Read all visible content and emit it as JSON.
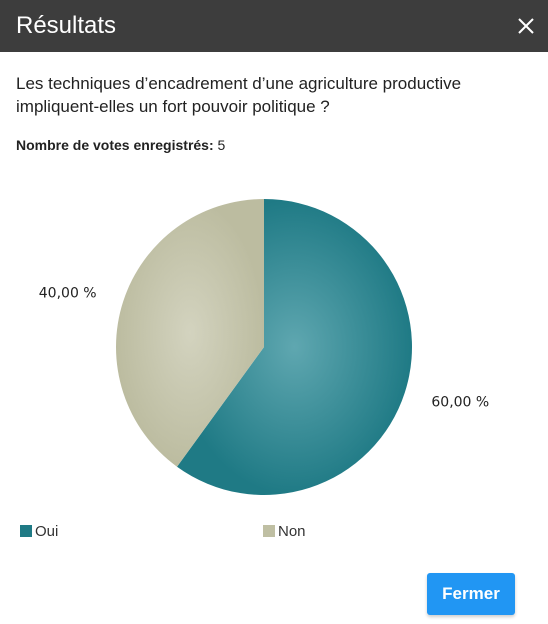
{
  "dialog": {
    "title": "Résultats",
    "close_icon": "close-icon",
    "question": "Les techniques d’encadrement d’une agriculture productive impliquent-elles un fort pouvoir politique ?",
    "votes_label": "Nombre de votes enregistrés:",
    "votes_count": "5",
    "close_button_label": "Fermer"
  },
  "chart_data": {
    "type": "pie",
    "slices": [
      {
        "name": "Oui",
        "value": 60,
        "label": "60,00 %",
        "color": "#1f7a85"
      },
      {
        "name": "Non",
        "value": 40,
        "label": "40,00 %",
        "color": "#bfbfa3"
      }
    ],
    "legend": [
      "Oui",
      "Non"
    ],
    "legend_placement": "bottom"
  },
  "colors": {
    "titlebar": "#3d3d3d",
    "accent_button": "#2196f3",
    "oui": "#1f7a85",
    "non": "#bfbfa3"
  }
}
